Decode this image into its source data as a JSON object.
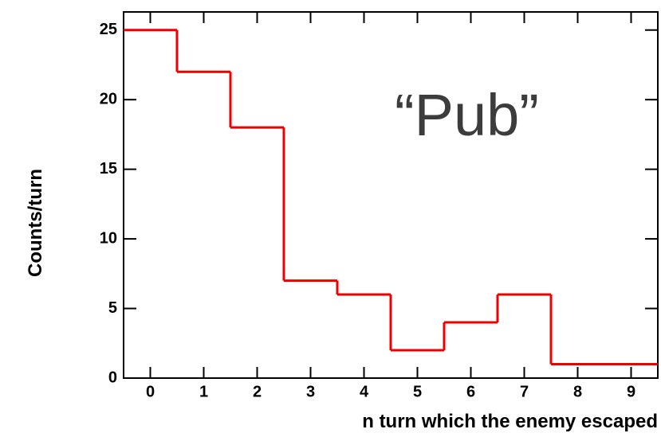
{
  "chart_data": {
    "type": "histogram",
    "annotation": "“Pub”",
    "x_label": "n turn which the enemy escaped",
    "y_label": "Counts/turn",
    "bins": [
      -0.5,
      0.5,
      1.5,
      2.5,
      3.5,
      4.5,
      5.5,
      6.5,
      7.5,
      8.5,
      9.5
    ],
    "values": [
      25,
      22,
      18,
      7,
      6,
      2,
      4,
      6,
      1,
      1
    ],
    "color": "#ee0000",
    "xlim": [
      -0.5,
      9.5
    ],
    "ylim": [
      0,
      26.3
    ],
    "xticks": [
      0,
      1,
      2,
      3,
      4,
      5,
      6,
      7,
      8,
      9
    ],
    "yticks": [
      0,
      5,
      10,
      15,
      20,
      25
    ],
    "grid": false
  }
}
